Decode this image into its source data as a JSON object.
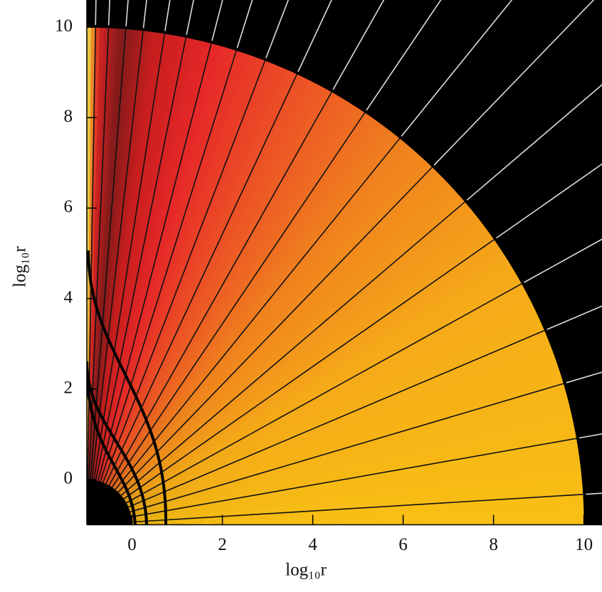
{
  "chart_data": {
    "type": "polar-map",
    "x_label": "log₁₀r",
    "y_label": "log₁₀r",
    "xlim": [
      -1,
      10.4
    ],
    "ylim": [
      -1,
      10.6
    ],
    "xticks": [
      0,
      2,
      4,
      6,
      8,
      10
    ],
    "yticks": [
      0,
      2,
      4,
      6,
      8,
      10
    ]
  }
}
